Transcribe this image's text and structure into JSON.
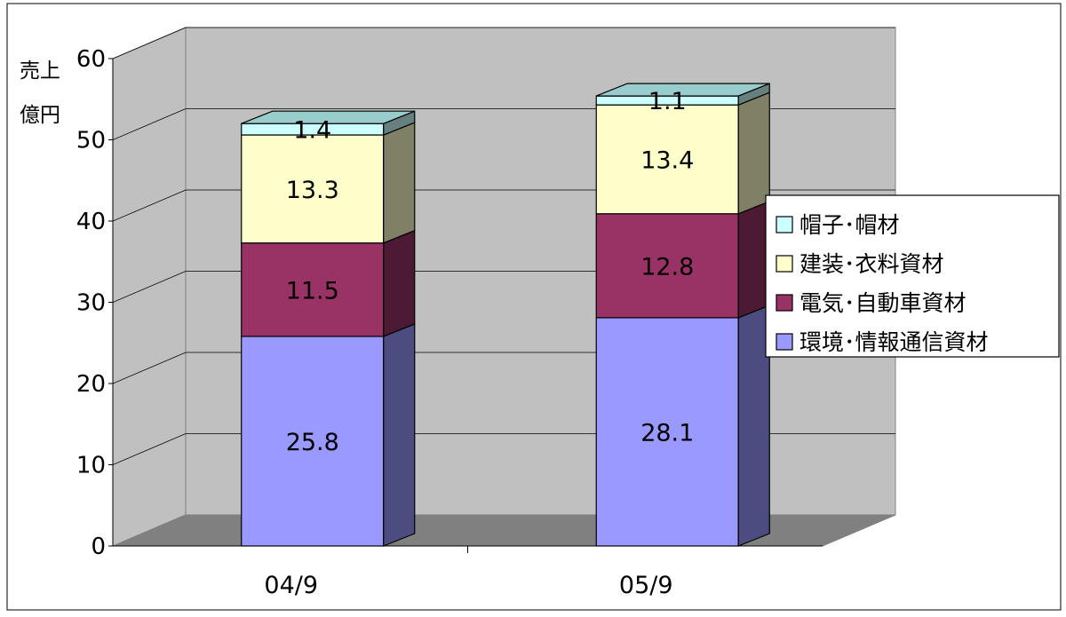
{
  "chart_data": {
    "type": "bar",
    "stacked": true,
    "three_d": true,
    "categories": [
      "04/9",
      "05/9"
    ],
    "ylabel": "売上\n億円",
    "ylim": [
      0,
      60
    ],
    "yticks": [
      0,
      10,
      20,
      30,
      40,
      50,
      60
    ],
    "grid": true,
    "legend_position": "right",
    "series": [
      {
        "name": "環境･情報通信資材",
        "values": [
          25.8,
          28.1
        ],
        "color": "#9999ff",
        "side_color": "#4c4c80"
      },
      {
        "name": "電気･自動車資材",
        "values": [
          11.5,
          12.8
        ],
        "color": "#993366",
        "side_color": "#4d1a33"
      },
      {
        "name": "建装･衣料資材",
        "values": [
          13.3,
          13.4
        ],
        "color": "#ffffcc",
        "side_color": "#808066"
      },
      {
        "name": "帽子･帽材",
        "values": [
          1.4,
          1.1
        ],
        "color": "#ccffff",
        "side_color": "#668080"
      }
    ],
    "legend_order": [
      "帽子･帽材",
      "建装･衣料資材",
      "電気･自動車資材",
      "環境･情報通信資材"
    ]
  }
}
